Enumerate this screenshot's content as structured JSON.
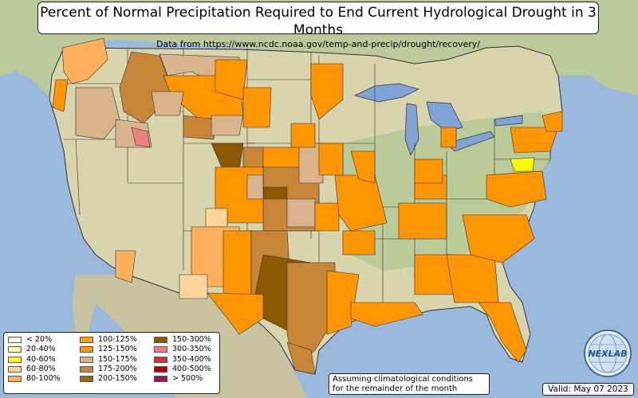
{
  "title": "Percent of Normal Precipitation Required to End Current Hydrological Drought in 3 Months",
  "subtitle": "Data from https://www.ncdc.noaa.gov/temp-and-precip/drought/recovery/",
  "legend": {
    "columns": [
      [
        {
          "label": "< 20%",
          "color": "#ffffe6"
        },
        {
          "label": "20-40%",
          "color": "#ffffa8"
        },
        {
          "label": "40-60%",
          "color": "#ffff00"
        },
        {
          "label": "60-80%",
          "color": "#ffd59a"
        },
        {
          "label": "80-100%",
          "color": "#ffb05a"
        }
      ],
      [
        {
          "label": "100-125%",
          "color": "#ffa500"
        },
        {
          "label": "125-150%",
          "color": "#ff9500"
        },
        {
          "label": "150-175%",
          "color": "#d9b38c"
        },
        {
          "label": "175-200%",
          "color": "#c98638"
        },
        {
          "label": "200-150%",
          "color": "#a0650a"
        }
      ],
      [
        {
          "label": "150-300%",
          "color": "#8b5a00"
        },
        {
          "label": "300-350%",
          "color": "#f08080"
        },
        {
          "label": "350-400%",
          "color": "#cd3333"
        },
        {
          "label": "400-500%",
          "color": "#b00000"
        },
        {
          "label": "> 500%",
          "color": "#9b1550"
        }
      ]
    ]
  },
  "note": {
    "line1": "Assuming climatological conditions",
    "line2": "for the remainder of the month"
  },
  "valid": "Valid: May 07 2023",
  "logo": {
    "text": "NEXLAB",
    "icon": "globe-logo"
  },
  "colors": {
    "ocean": "#9bb9dc",
    "land": "#d8d6b0",
    "land_green": "#a9c48e",
    "lake": "#7fa3d4",
    "mexico_canada": "#c9c6a0"
  }
}
